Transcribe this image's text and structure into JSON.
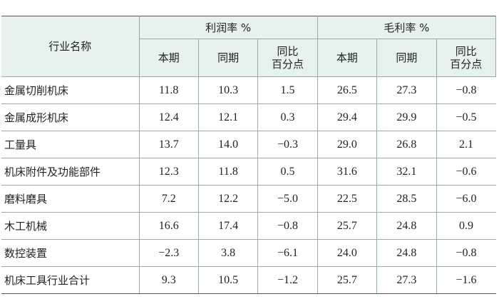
{
  "table": {
    "header": {
      "name": "行业名称",
      "groups": [
        "利润率 %",
        "毛利率 %"
      ],
      "subheaders": [
        "本期",
        "同期",
        "同比\n百分点",
        "本期",
        "同期",
        "同比\n百分点"
      ]
    },
    "rows": [
      [
        "金属切削机床",
        "11.8",
        "10.3",
        "1.5",
        "26.5",
        "27.3",
        "−0.8"
      ],
      [
        "金属成形机床",
        "12.4",
        "12.1",
        "0.3",
        "29.4",
        "29.9",
        "−0.5"
      ],
      [
        "工量具",
        "13.7",
        "14.0",
        "−0.3",
        "29.0",
        "26.8",
        "2.1"
      ],
      [
        "机床附件及功能部件",
        "12.3",
        "11.8",
        "0.5",
        "31.6",
        "32.1",
        "−0.6"
      ],
      [
        "磨料磨具",
        "7.2",
        "12.2",
        "−5.0",
        "22.5",
        "28.5",
        "−6.0"
      ],
      [
        "木工机械",
        "16.6",
        "17.4",
        "−0.8",
        "25.7",
        "24.8",
        "0.9"
      ],
      [
        "数控装置",
        "−2.3",
        "3.8",
        "−6.1",
        "24.0",
        "24.8",
        "−0.8"
      ],
      [
        "机床工具行业合计",
        "9.3",
        "10.5",
        "−1.2",
        "25.7",
        "27.3",
        "−1.6"
      ]
    ]
  }
}
